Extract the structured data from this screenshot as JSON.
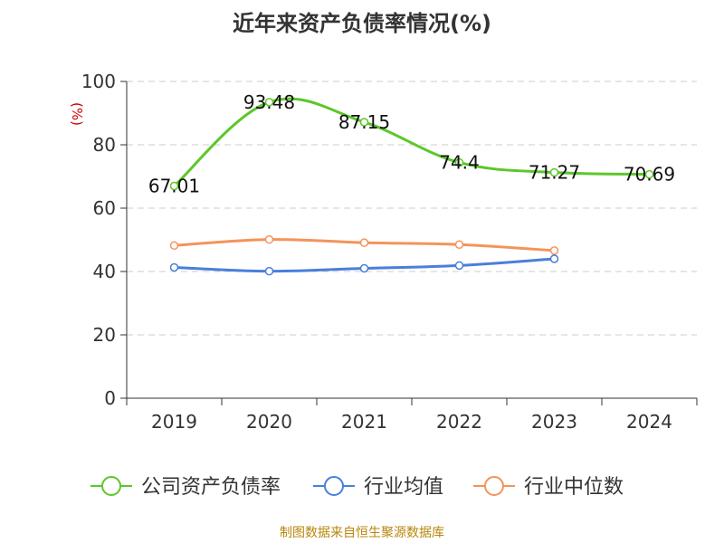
{
  "chart_data": {
    "type": "line",
    "title": "近年来资产负债率情况(%)",
    "ylabel": "(%)",
    "xlabel": "",
    "ylim": [
      0,
      100
    ],
    "y_ticks": [
      0,
      20,
      40,
      60,
      80,
      100
    ],
    "categories": [
      "2019",
      "2020",
      "2021",
      "2022",
      "2023",
      "2024"
    ],
    "grid": true,
    "legend_position": "bottom",
    "series": [
      {
        "name": "公司资产负债率",
        "color": "#5cc72a",
        "values": [
          67.01,
          93.48,
          87.15,
          74.4,
          71.27,
          70.69
        ],
        "labels": [
          "67.01",
          "93.48",
          "87.15",
          "74.4",
          "71.27",
          "70.69"
        ]
      },
      {
        "name": "行业均值",
        "color": "#4a7fdb",
        "values": [
          41.3,
          40.1,
          41.0,
          41.9,
          44.0,
          null
        ]
      },
      {
        "name": "行业中位数",
        "color": "#f5935a",
        "values": [
          48.2,
          50.1,
          49.1,
          48.5,
          46.6,
          null
        ]
      }
    ]
  },
  "source": "制图数据来自恒生聚源数据库"
}
